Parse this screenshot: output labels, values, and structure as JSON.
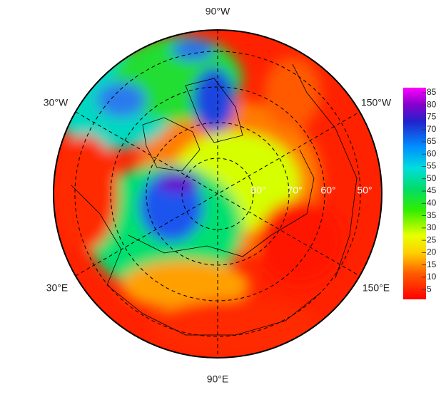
{
  "map": {
    "longitude_labels": [
      "90°W",
      "30°W",
      "150°W",
      "30°E",
      "150°E",
      "90°E"
    ],
    "latitude_labels": [
      "80°",
      "70°",
      "60°",
      "50°"
    ]
  },
  "colorbar": {
    "lim": [
      1,
      87
    ],
    "ticks": [
      5,
      10,
      15,
      20,
      25,
      30,
      35,
      40,
      45,
      50,
      55,
      60,
      65,
      70,
      75,
      80,
      85
    ]
  }
}
